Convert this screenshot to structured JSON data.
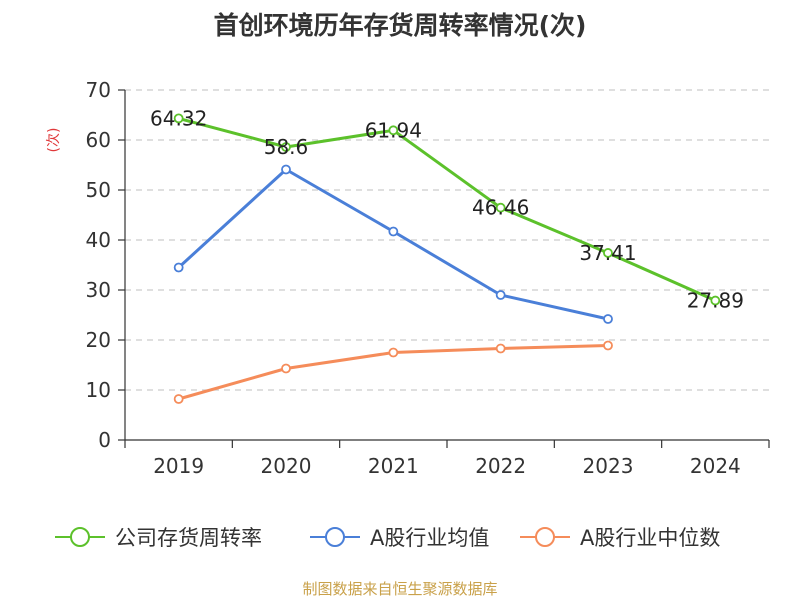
{
  "title": "首创环境历年存货周转率情况(次)",
  "footer": "制图数据来自恒生聚源数据库",
  "chart_data": {
    "type": "line",
    "title": "首创环境历年存货周转率情况(次)",
    "ylabel": "(次)",
    "xlabel": "",
    "ylim": [
      0,
      70
    ],
    "yticks": [
      0,
      10,
      20,
      30,
      40,
      50,
      60,
      70
    ],
    "categories": [
      "2019",
      "2020",
      "2021",
      "2022",
      "2023",
      "2024"
    ],
    "grid": true,
    "legend_position": "bottom",
    "series": [
      {
        "name": "公司存货周转率",
        "color": "#5cc12b",
        "values": [
          64.32,
          58.6,
          61.94,
          46.46,
          37.41,
          27.89
        ],
        "labels": [
          "64.32",
          "58.6",
          "61.94",
          "46.46",
          "37.41",
          "27.89"
        ]
      },
      {
        "name": "A股行业均值",
        "color": "#4a7fd8",
        "values": [
          34.5,
          54.1,
          41.7,
          29.0,
          24.2,
          null
        ]
      },
      {
        "name": "A股行业中位数",
        "color": "#f58c5a",
        "values": [
          8.2,
          14.3,
          17.5,
          18.3,
          18.9,
          null
        ]
      }
    ]
  }
}
